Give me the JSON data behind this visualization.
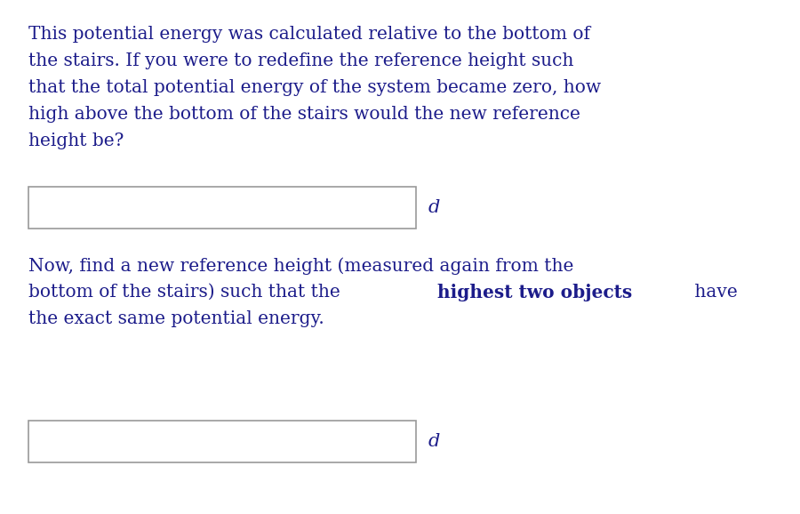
{
  "background_color": "#ffffff",
  "figsize": [
    9.0,
    5.78
  ],
  "dpi": 100,
  "paragraph1_lines": [
    "This potential energy was calculated relative to the bottom of",
    "the stairs. If you were to redefine the reference height such",
    "that the total potential energy of the system became zero, how",
    "high above the bottom of the stairs would the new reference",
    "height be?"
  ],
  "paragraph2_line1": "Now, find a new reference height (measured again from the",
  "paragraph2_line2_before_bold": "bottom of the stairs) such that the ",
  "paragraph2_line2_bold": "highest two objects",
  "paragraph2_line2_after_bold": " have",
  "paragraph2_line3": "the exact same potential energy.",
  "text_color": "#1c1c8a",
  "unit_label": "d",
  "unit_label_color": "#1c1c8a",
  "box_edge_color": "#999999",
  "box_face_color": "#ffffff",
  "font_size": 14.5,
  "unit_font_size": 15
}
